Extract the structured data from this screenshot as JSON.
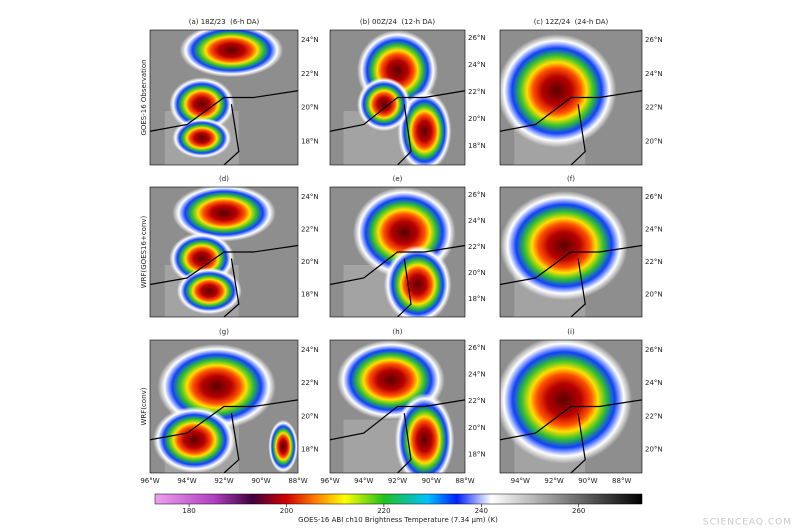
{
  "rows": [
    {
      "label": "GOES-16 Observation",
      "panels": [
        "(a) 18Z/23  (6-h DA)",
        "(b) 00Z/24  (12-h DA)",
        "(c) 12Z/24  (24-h DA)"
      ]
    },
    {
      "label": "WRF(GOES16+conv)",
      "panels": [
        "(d)",
        "(e)",
        "(f)"
      ]
    },
    {
      "label": "WRF(conv)",
      "panels": [
        "(g)",
        "(h)",
        "(i)"
      ]
    }
  ],
  "lat_labels": [
    [
      "24°N",
      "22°N",
      "20°N",
      "18°N"
    ],
    [
      "26°N",
      "24°N",
      "22°N",
      "20°N",
      "18°N"
    ],
    [
      "26°N",
      "24°N",
      "22°N",
      "20°N"
    ]
  ],
  "lon_labels": [
    [
      "96°W",
      "94°W",
      "92°W",
      "90°W",
      "88°W"
    ],
    [
      "96°W",
      "94°W",
      "92°W",
      "90°W",
      "88°W"
    ],
    [
      "94°W",
      "92°W",
      "90°W",
      "88°W"
    ]
  ],
  "colorbar": {
    "label": "GOES-16 ABI ch10 Brightness Temperature (7.34 µm) (K)",
    "lim": [
      173,
      273
    ],
    "ticks": [
      180,
      200,
      220,
      240,
      260
    ]
  },
  "watermark": "SCIENCEAQ.COM"
}
